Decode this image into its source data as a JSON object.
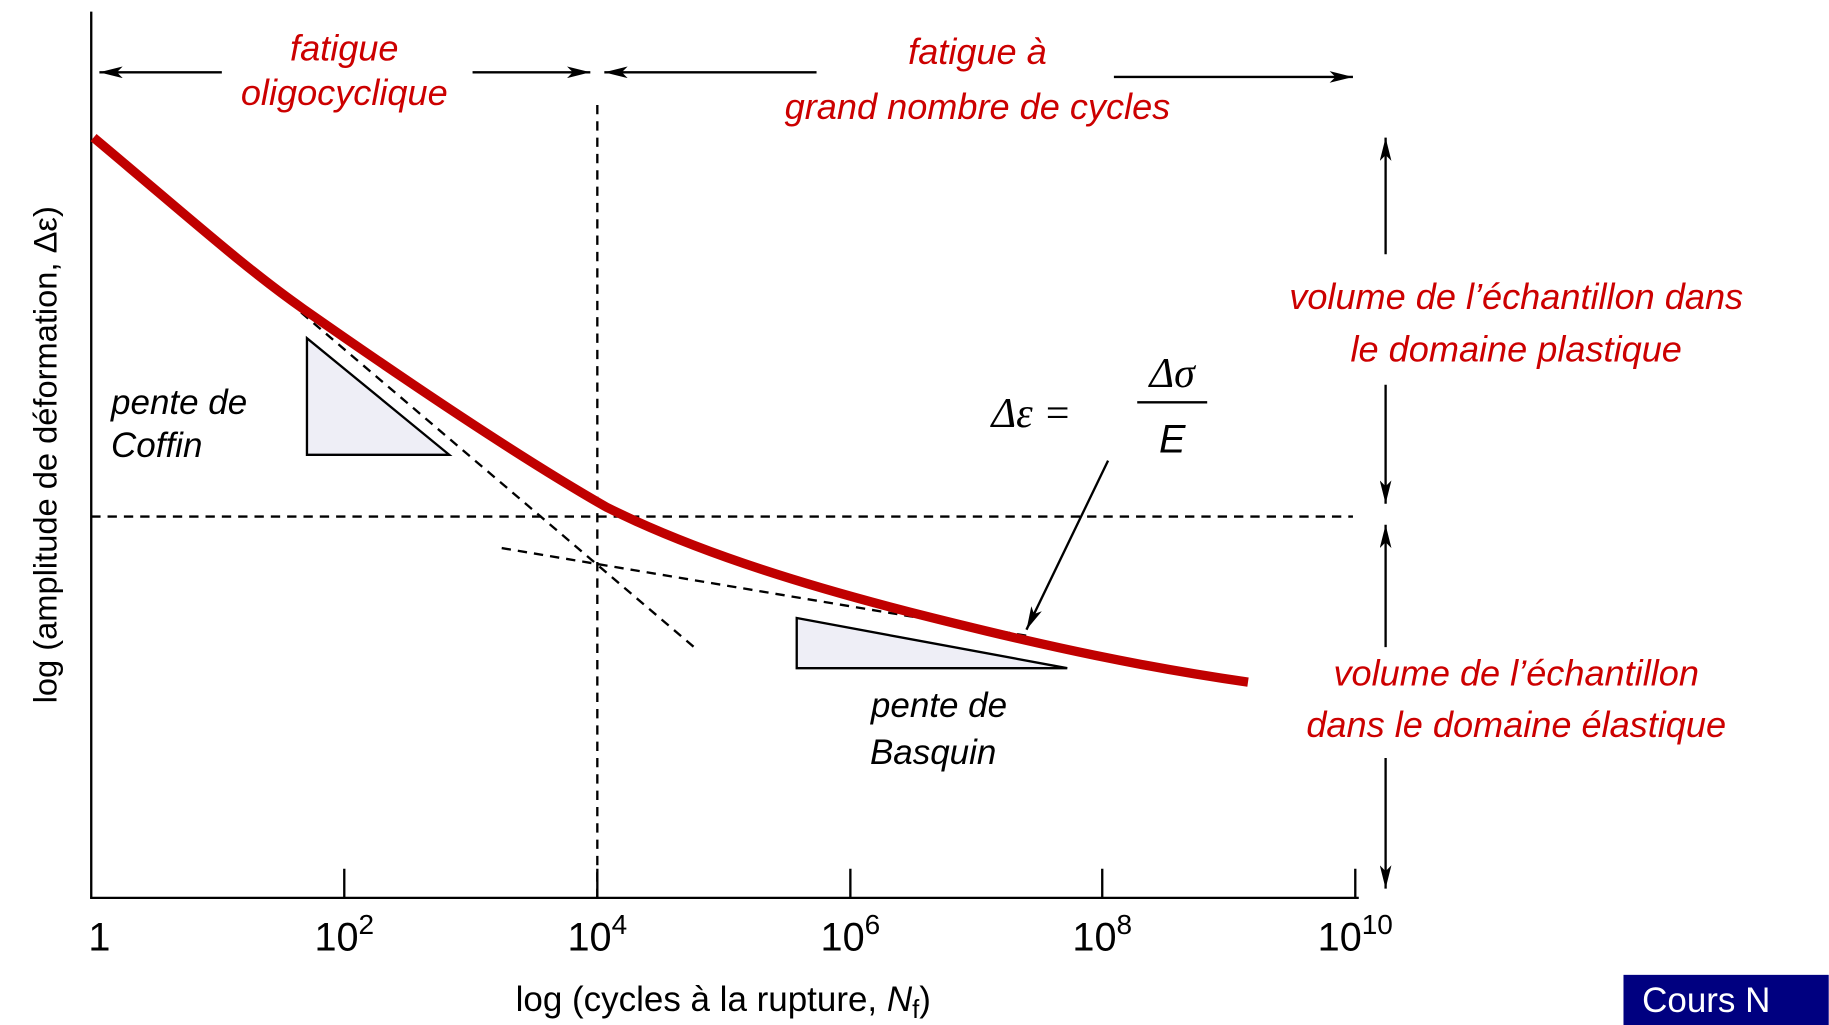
{
  "diagram": {
    "x_axis": {
      "label": {
        "prefix": "log (cycles à la rupture, ",
        "variable": "N",
        "subscript": "f",
        "suffix": ")"
      },
      "ticks": [
        {
          "base": "1"
        },
        {
          "base": "10",
          "exponent": "2"
        },
        {
          "base": "10",
          "exponent": "4"
        },
        {
          "base": "10",
          "exponent": "6"
        },
        {
          "base": "10",
          "exponent": "8"
        },
        {
          "base": "10",
          "exponent": "10"
        }
      ]
    },
    "y_axis": {
      "label": "log (amplitude de déformation, Δε)"
    },
    "regions": {
      "low_cycle": [
        "fatigue",
        "oligocyclique"
      ],
      "high_cycle": [
        "fatigue à",
        "grand nombre de cycles"
      ],
      "plastic": [
        "volume de l’échantillon dans",
        "le domaine plastique"
      ],
      "elastic": [
        "volume de l’échantillon",
        "dans le domaine élastique"
      ]
    },
    "slopes": {
      "coffin": [
        "pente de",
        "Coffin"
      ],
      "basquin": [
        "pente de",
        "Basquin"
      ]
    },
    "formula": {
      "left": "Δε =",
      "numerator": "Δσ",
      "denominator": "E"
    },
    "badge": "Cours N"
  }
}
